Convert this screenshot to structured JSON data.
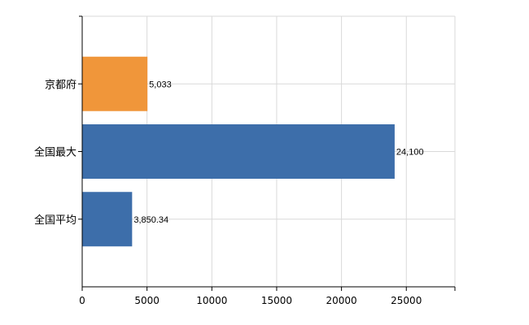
{
  "chart_data": {
    "type": "bar",
    "orientation": "horizontal",
    "categories": [
      "京都府",
      "全国最大",
      "全国平均"
    ],
    "values": [
      5033,
      24100,
      3850.34
    ],
    "value_labels": [
      "5,033",
      "24,100",
      "3,850.34"
    ],
    "bar_colors": [
      "#f0963a",
      "#3d6eaa",
      "#3d6eaa"
    ],
    "xlim": [
      0,
      28750
    ],
    "x_ticks": [
      0,
      5000,
      10000,
      15000,
      20000,
      25000
    ],
    "x_tick_labels": [
      "0",
      "5000",
      "10000",
      "15000",
      "20000",
      "25000"
    ],
    "grid": true,
    "title": "",
    "xlabel": "",
    "ylabel": ""
  }
}
